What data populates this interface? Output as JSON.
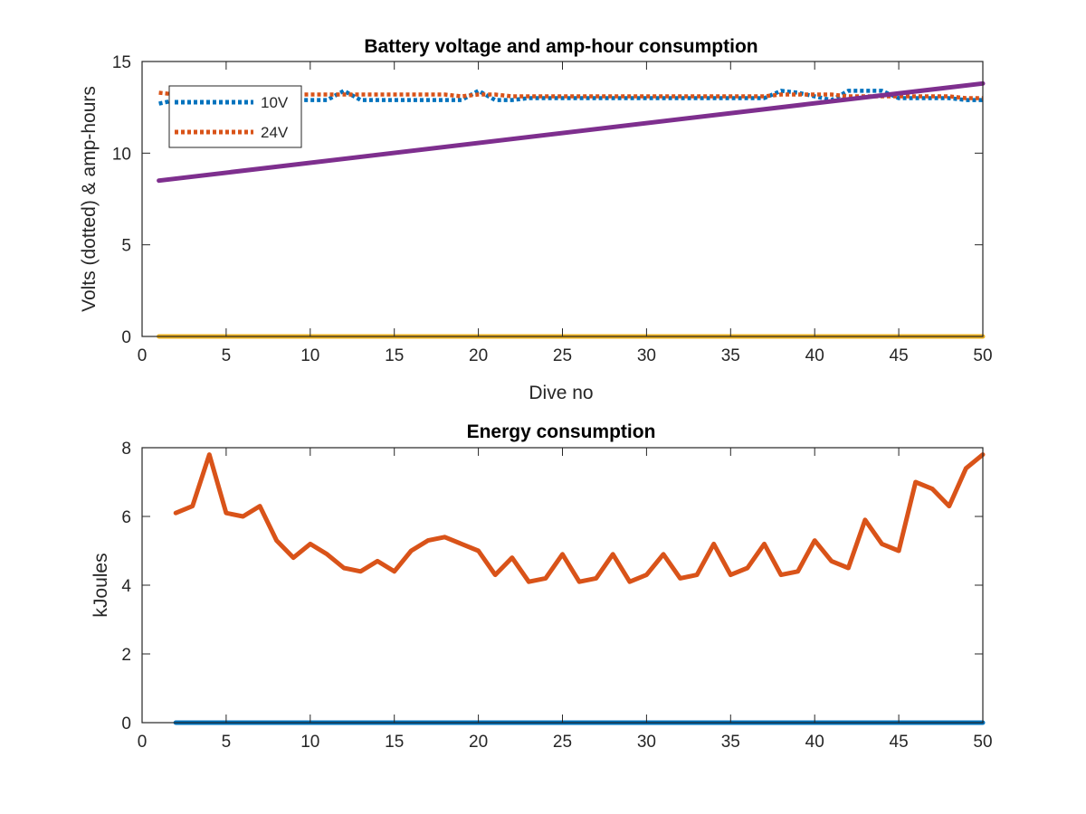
{
  "chart_data": [
    {
      "type": "line",
      "title": "Battery voltage and amp-hour consumption",
      "xlabel": "Dive no",
      "ylabel": "Volts (dotted) & amp-hours",
      "xlim": [
        0,
        50
      ],
      "ylim": [
        0,
        15
      ],
      "xticks": [
        0,
        5,
        10,
        15,
        20,
        25,
        30,
        35,
        40,
        45,
        50
      ],
      "yticks": [
        0,
        5,
        10,
        15
      ],
      "grid": false,
      "legend_position": "top-left",
      "series": [
        {
          "name": "10V",
          "style": "dotted",
          "color": "#0072BD",
          "x": [
            1,
            2,
            3,
            4,
            5,
            6,
            7,
            8,
            9,
            10,
            11,
            12,
            13,
            14,
            15,
            16,
            17,
            18,
            19,
            20,
            21,
            22,
            23,
            24,
            25,
            26,
            27,
            28,
            29,
            30,
            31,
            32,
            33,
            34,
            35,
            36,
            37,
            38,
            39,
            40,
            41,
            42,
            43,
            44,
            45,
            46,
            47,
            48,
            49,
            50
          ],
          "values": [
            12.7,
            12.9,
            12.9,
            12.9,
            12.9,
            12.9,
            12.9,
            12.9,
            12.9,
            12.9,
            12.9,
            13.4,
            12.9,
            12.9,
            12.9,
            12.9,
            12.9,
            12.9,
            12.9,
            13.4,
            12.9,
            12.9,
            13.0,
            13.0,
            13.0,
            13.0,
            13.0,
            13.0,
            13.0,
            13.0,
            13.0,
            13.0,
            13.0,
            13.0,
            13.0,
            13.0,
            13.0,
            13.4,
            13.3,
            13.1,
            12.9,
            13.4,
            13.4,
            13.4,
            13.0,
            13.0,
            13.0,
            13.0,
            12.9,
            12.9
          ]
        },
        {
          "name": "24V",
          "style": "dotted",
          "color": "#D95319",
          "x": [
            1,
            2,
            3,
            4,
            5,
            6,
            7,
            8,
            9,
            10,
            11,
            12,
            13,
            14,
            15,
            16,
            17,
            18,
            19,
            20,
            21,
            22,
            23,
            24,
            25,
            26,
            27,
            28,
            29,
            30,
            31,
            32,
            33,
            34,
            35,
            36,
            37,
            38,
            39,
            40,
            41,
            42,
            43,
            44,
            45,
            46,
            47,
            48,
            49,
            50
          ],
          "values": [
            13.3,
            13.2,
            13.2,
            13.2,
            13.2,
            13.2,
            13.2,
            13.2,
            13.2,
            13.2,
            13.2,
            13.2,
            13.2,
            13.2,
            13.2,
            13.2,
            13.2,
            13.2,
            13.1,
            13.2,
            13.2,
            13.1,
            13.1,
            13.1,
            13.1,
            13.1,
            13.1,
            13.1,
            13.1,
            13.1,
            13.1,
            13.1,
            13.1,
            13.1,
            13.1,
            13.1,
            13.1,
            13.2,
            13.2,
            13.2,
            13.2,
            13.1,
            13.1,
            13.1,
            13.1,
            13.1,
            13.1,
            13.1,
            13.0,
            13.0
          ]
        },
        {
          "name": "",
          "style": "solid",
          "color": "#EDB120",
          "x": [
            1,
            50
          ],
          "values": [
            0,
            0
          ]
        },
        {
          "name": "",
          "style": "solid",
          "color": "#7E2F8E",
          "x": [
            1,
            50
          ],
          "values": [
            8.5,
            13.8
          ]
        }
      ]
    },
    {
      "type": "line",
      "title": "Energy consumption",
      "xlabel": "",
      "ylabel": "kJoules",
      "xlim": [
        0,
        50
      ],
      "ylim": [
        0,
        8
      ],
      "xticks": [
        0,
        5,
        10,
        15,
        20,
        25,
        30,
        35,
        40,
        45,
        50
      ],
      "yticks": [
        0,
        2,
        4,
        6,
        8
      ],
      "grid": false,
      "series": [
        {
          "name": "",
          "style": "solid",
          "color": "#0072BD",
          "x": [
            2,
            50
          ],
          "values": [
            0,
            0
          ]
        },
        {
          "name": "",
          "style": "solid",
          "color": "#D95319",
          "x": [
            2,
            3,
            4,
            5,
            6,
            7,
            8,
            9,
            10,
            11,
            12,
            13,
            14,
            15,
            16,
            17,
            18,
            19,
            20,
            21,
            22,
            23,
            24,
            25,
            26,
            27,
            28,
            29,
            30,
            31,
            32,
            33,
            34,
            35,
            36,
            37,
            38,
            39,
            40,
            41,
            42,
            43,
            44,
            45,
            46,
            47,
            48,
            49,
            50
          ],
          "values": [
            6.1,
            6.3,
            7.8,
            6.1,
            6.0,
            6.3,
            5.3,
            4.8,
            5.2,
            4.9,
            4.5,
            4.4,
            4.7,
            4.4,
            5.0,
            5.3,
            5.4,
            5.2,
            5.0,
            4.3,
            4.8,
            4.1,
            4.2,
            4.9,
            4.1,
            4.2,
            4.9,
            4.1,
            4.3,
            4.9,
            4.2,
            4.3,
            5.2,
            4.3,
            4.5,
            5.2,
            4.3,
            4.4,
            5.3,
            4.7,
            4.5,
            5.9,
            5.2,
            5.0,
            7.0,
            6.8,
            6.3,
            7.4,
            7.8
          ]
        }
      ]
    }
  ]
}
